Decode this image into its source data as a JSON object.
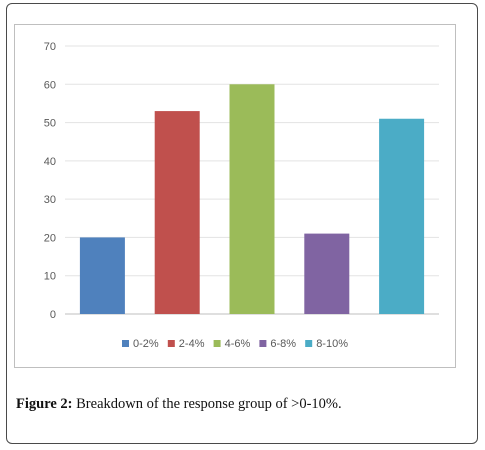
{
  "chart_data": {
    "type": "bar",
    "categories": [
      "0-2%",
      "2-4%",
      "4-6%",
      "6-8%",
      "8-10%"
    ],
    "values": [
      20,
      53,
      60,
      21,
      51
    ],
    "colors": [
      "#4f81bd",
      "#c0504d",
      "#9bbb59",
      "#8064a2",
      "#4bacc6"
    ],
    "ylim": [
      0,
      70
    ],
    "yticks": [
      "0",
      "10",
      "20",
      "30",
      "40",
      "50",
      "60",
      "70"
    ],
    "grid": true,
    "legend_position": "bottom",
    "title": "",
    "xlabel": "",
    "ylabel": ""
  },
  "caption": {
    "label": "Figure 2:",
    "text": " Breakdown of the response group of >0-10%."
  }
}
